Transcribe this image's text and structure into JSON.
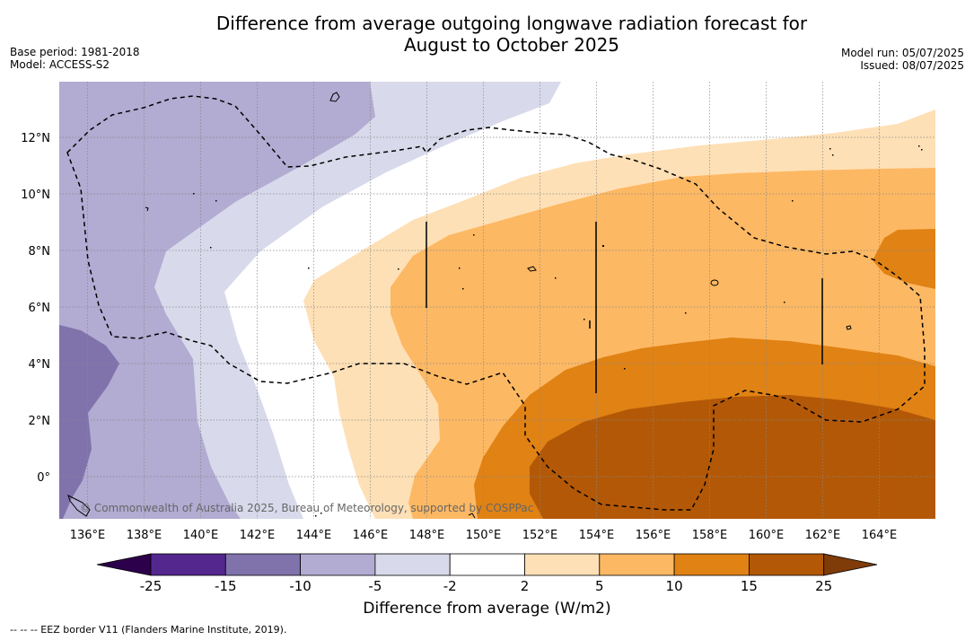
{
  "title_line1": "Difference from average outgoing longwave radiation forecast for",
  "title_line2": "August to October 2025",
  "base_period": "Base period: 1981-2018",
  "model": "Model: ACCESS-S2",
  "model_run": "Model run: 05/07/2025",
  "issued": "Issued: 08/07/2025",
  "copyright": "© Commonwealth of Australia 2025, Bureau of Meteorology, supported by COSPPac",
  "footnote": "--  --  -- EEZ border V11 (Flanders Marine Institute, 2019).",
  "colorbar": {
    "title": "Difference from average (W/m2)",
    "ticks": [
      "-25",
      "-15",
      "-10",
      "-5",
      "-2",
      "2",
      "5",
      "10",
      "15",
      "25"
    ],
    "colors": [
      "#54278f",
      "#8073ac",
      "#b2abd2",
      "#d8daeb",
      "#ffffff",
      "#fee0b6",
      "#fdb863",
      "#e08214",
      "#b35806"
    ],
    "extend_low_color": "#2d004b",
    "extend_high_color": "#7f3b08"
  },
  "axes": {
    "lon_labels": [
      "136°E",
      "138°E",
      "140°E",
      "142°E",
      "144°E",
      "146°E",
      "148°E",
      "150°E",
      "152°E",
      "154°E",
      "156°E",
      "158°E",
      "160°E",
      "162°E",
      "164°E"
    ],
    "lat_labels": [
      "12°N",
      "10°N",
      "8°N",
      "6°N",
      "4°N",
      "2°N",
      "0°"
    ]
  }
}
